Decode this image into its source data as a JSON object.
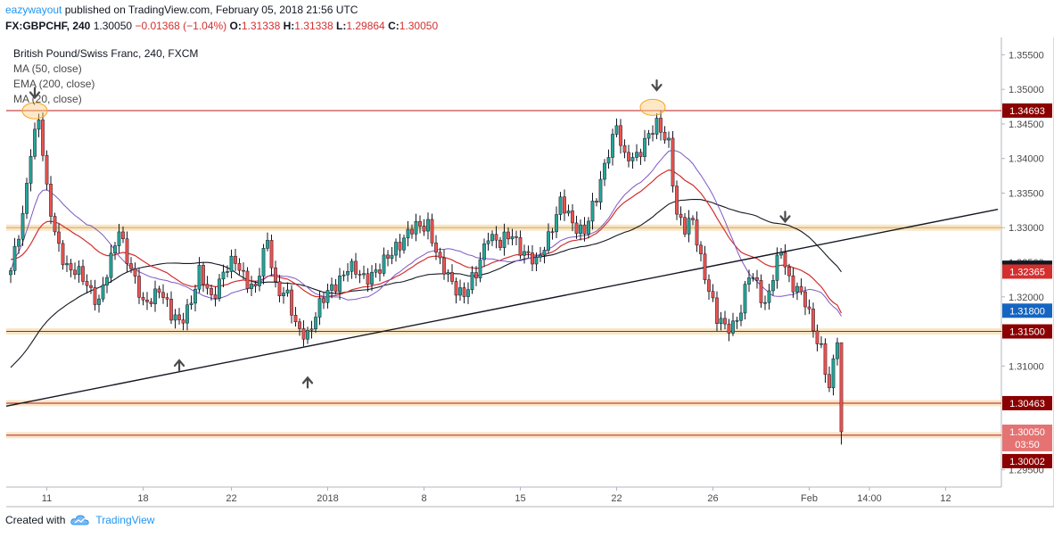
{
  "header": {
    "author": "eazywayout",
    "published_text": "published on TradingView.com, February 05, 2018 21:56 UTC"
  },
  "quote": {
    "symbol": "FX:GBPCHF, 240",
    "last": "1.30050",
    "change": "−0.01368 (−1.04%)",
    "o_label": "O:",
    "o": "1.31338",
    "h_label": "H:",
    "h": "1.31338",
    "l_label": "L:",
    "l": "1.29864",
    "c_label": "C:",
    "c": "1.30050"
  },
  "legend": {
    "title": "British Pound/Swiss Franc, 240, FXCM",
    "items": [
      "MA (50, close)",
      "EMA (200, close)",
      "MA (20, close)"
    ]
  },
  "footer": {
    "created_with": "Created with",
    "brand": "TradingView"
  },
  "colors": {
    "up": "#26a69a",
    "down": "#ef5350",
    "wick": "#131722",
    "ma50": "#131722",
    "ema200": "#d32f2f",
    "ma20": "#7e57c2",
    "zone": "#f5deb3",
    "resistance": "#b71c1c",
    "trendline": "#131722",
    "price_tag_dark": "#8b0000",
    "price_tag_red": "#d32f2f",
    "price_tag_blue": "#1565c0"
  },
  "chart_data": {
    "type": "candlestick",
    "ylim": [
      1.2925,
      1.3575
    ],
    "y_ticks": [
      "1.29500",
      "1.30000",
      "1.30500",
      "1.31000",
      "1.31500",
      "1.32000",
      "1.32500",
      "1.33000",
      "1.33500",
      "1.34000",
      "1.34500",
      "1.35000",
      "1.35500"
    ],
    "x_ticks": [
      {
        "label": "11",
        "index": 9
      },
      {
        "label": "18",
        "index": 33
      },
      {
        "label": "22",
        "index": 55
      },
      {
        "label": "2018",
        "index": 79
      },
      {
        "label": "8",
        "index": 103
      },
      {
        "label": "15",
        "index": 127
      },
      {
        "label": "22",
        "index": 151
      },
      {
        "label": "26",
        "index": 175
      },
      {
        "label": "Feb",
        "index": 199
      },
      {
        "label": "14:00",
        "index": 214
      },
      {
        "label": "12",
        "index": 233
      }
    ],
    "horizontal_lines": [
      {
        "price": 1.34693,
        "color": "#b71c1c",
        "zone": false
      },
      {
        "price": 1.33,
        "color": "#d4a860",
        "zone": true
      },
      {
        "price": 1.315,
        "color": "#b71c1c",
        "zone": true
      },
      {
        "price": 1.30463,
        "color": "#b71c1c",
        "zone": true
      },
      {
        "price": 1.3,
        "color": "#b71c1c",
        "zone": true
      }
    ],
    "trendline": {
      "from": {
        "index": 0,
        "price": 1.3042
      },
      "to": {
        "index": 246,
        "price": 1.33265
      }
    },
    "price_tags": [
      {
        "price": 1.34693,
        "label": "1.34693",
        "color": "#8b0000"
      },
      {
        "price": 1.32421,
        "label": "1.32421",
        "color": "#131722"
      },
      {
        "price": 1.32365,
        "label": "1.32365",
        "color": "#d32f2f"
      },
      {
        "price": 1.318,
        "label": "1.31800",
        "color": "#1565c0"
      },
      {
        "price": 1.315,
        "label": "1.31500",
        "color": "#8b0000"
      },
      {
        "price": 1.30463,
        "label": "1.30463",
        "color": "#8b0000"
      },
      {
        "price": 1.3005,
        "label": "1.30050",
        "color": "#e57373"
      },
      {
        "price": 1.2987,
        "label": "03:50",
        "color": "#e57373"
      },
      {
        "price": 1.29625,
        "label": "1.30002",
        "color": "#8b0000"
      }
    ],
    "arrows": [
      {
        "index": 6,
        "price": 1.3493,
        "dir": "down"
      },
      {
        "index": 42,
        "price": 1.3103,
        "dir": "up"
      },
      {
        "index": 74,
        "price": 1.3078,
        "dir": "up"
      },
      {
        "index": 161,
        "price": 1.3504,
        "dir": "down"
      },
      {
        "index": 193,
        "price": 1.3314,
        "dir": "down"
      }
    ],
    "ellipses": [
      {
        "index": 6,
        "price": 1.3469
      },
      {
        "index": 160,
        "price": 1.3474
      }
    ],
    "anchors": [
      [
        0,
        1.3238
      ],
      [
        3,
        1.3312
      ],
      [
        5,
        1.3415
      ],
      [
        7,
        1.3462
      ],
      [
        9,
        1.335
      ],
      [
        11,
        1.329
      ],
      [
        14,
        1.3245
      ],
      [
        18,
        1.3225
      ],
      [
        22,
        1.3195
      ],
      [
        25,
        1.325
      ],
      [
        27,
        1.33
      ],
      [
        30,
        1.324
      ],
      [
        33,
        1.3185
      ],
      [
        37,
        1.3215
      ],
      [
        40,
        1.317
      ],
      [
        42,
        1.3165
      ],
      [
        45,
        1.3195
      ],
      [
        47,
        1.3232
      ],
      [
        50,
        1.32
      ],
      [
        53,
        1.3235
      ],
      [
        56,
        1.325
      ],
      [
        59,
        1.3225
      ],
      [
        61,
        1.321
      ],
      [
        64,
        1.3282
      ],
      [
        66,
        1.3218
      ],
      [
        69,
        1.32
      ],
      [
        71,
        1.3155
      ],
      [
        74,
        1.3148
      ],
      [
        77,
        1.3185
      ],
      [
        80,
        1.3215
      ],
      [
        84,
        1.324
      ],
      [
        88,
        1.323
      ],
      [
        92,
        1.3238
      ],
      [
        96,
        1.3275
      ],
      [
        100,
        1.3295
      ],
      [
        104,
        1.3308
      ],
      [
        107,
        1.3245
      ],
      [
        110,
        1.322
      ],
      [
        113,
        1.3205
      ],
      [
        116,
        1.323
      ],
      [
        119,
        1.3295
      ],
      [
        122,
        1.3275
      ],
      [
        125,
        1.329
      ],
      [
        128,
        1.3265
      ],
      [
        131,
        1.3245
      ],
      [
        134,
        1.329
      ],
      [
        137,
        1.3335
      ],
      [
        140,
        1.3305
      ],
      [
        143,
        1.3298
      ],
      [
        146,
        1.334
      ],
      [
        149,
        1.3415
      ],
      [
        151,
        1.345
      ],
      [
        153,
        1.3395
      ],
      [
        156,
        1.3405
      ],
      [
        158,
        1.3428
      ],
      [
        161,
        1.3445
      ],
      [
        164,
        1.3425
      ],
      [
        166,
        1.332
      ],
      [
        168,
        1.3295
      ],
      [
        170,
        1.331
      ],
      [
        172,
        1.3258
      ],
      [
        174,
        1.321
      ],
      [
        176,
        1.3165
      ],
      [
        178,
        1.3158
      ],
      [
        180,
        1.3162
      ],
      [
        182,
        1.318
      ],
      [
        184,
        1.323
      ],
      [
        186,
        1.322
      ],
      [
        188,
        1.319
      ],
      [
        190,
        1.3228
      ],
      [
        192,
        1.3265
      ],
      [
        194,
        1.3226
      ],
      [
        196,
        1.3215
      ],
      [
        198,
        1.319
      ],
      [
        200,
        1.315
      ],
      [
        202,
        1.3128
      ],
      [
        204,
        1.307
      ],
      [
        206,
        1.3133
      ],
      [
        207,
        1.3005
      ]
    ],
    "last": {
      "open": 1.31338,
      "high": 1.31338,
      "low": 1.29864,
      "close": 1.3005
    }
  }
}
